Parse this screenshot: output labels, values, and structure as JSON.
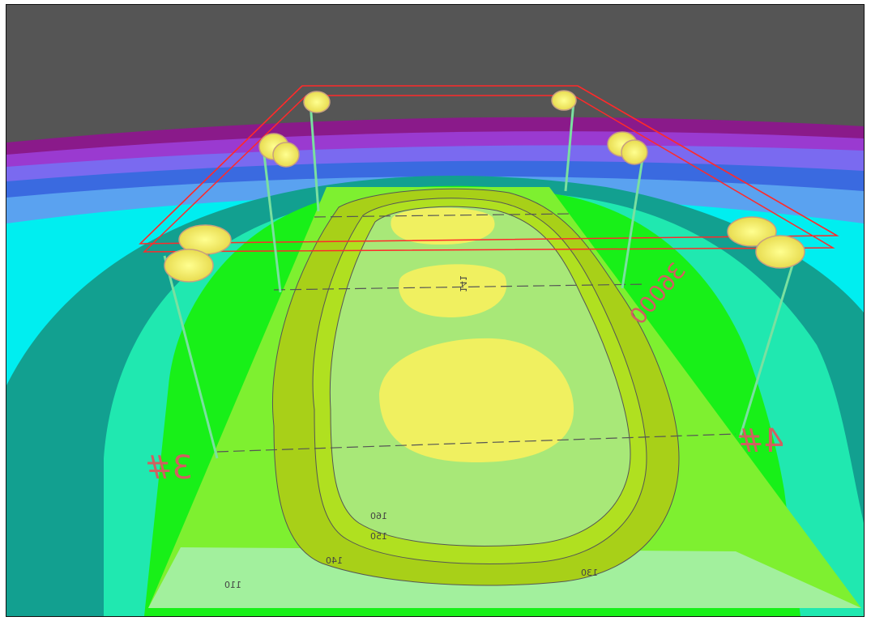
{
  "scene": {
    "description_labels": {
      "pole_left": "3#",
      "pole_right": "4#",
      "dimension": "36000",
      "center_value": "141"
    },
    "contour_labels": {
      "inner": "160",
      "middle": "150",
      "outer": "140",
      "edge": "130",
      "field": "110"
    }
  },
  "colors": {
    "sky": "#555555",
    "purple": "#8a1a8a",
    "violet": "#9a3ad0",
    "blue": "#3a6ae0",
    "light_blue": "#5aa2f0",
    "cyan": "#00f0f0",
    "teal": "#00c8a0",
    "dark_teal": "#12a090",
    "green": "#18f018",
    "lime": "#88f020",
    "olive": "#a8d018",
    "light_green": "#a8e878",
    "yellow": "#f0f060",
    "pale_green": "#a0f0b0",
    "frame_red": "#ff2a2a",
    "fixture": "#f4f070"
  }
}
